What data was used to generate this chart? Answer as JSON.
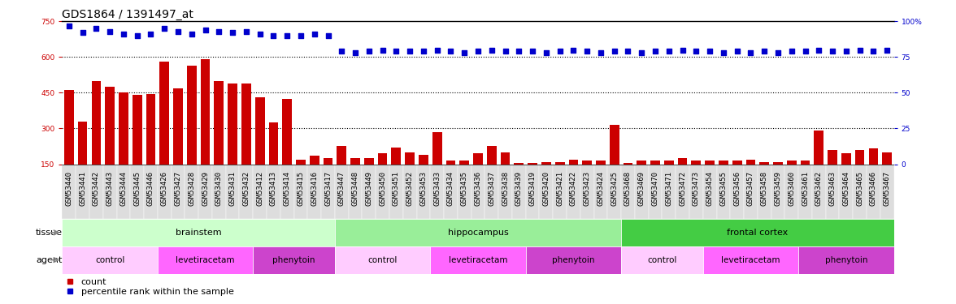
{
  "title": "GDS1864 / 1391497_at",
  "samples": [
    "GSM53440",
    "GSM53441",
    "GSM53442",
    "GSM53443",
    "GSM53444",
    "GSM53445",
    "GSM53446",
    "GSM53426",
    "GSM53427",
    "GSM53428",
    "GSM53429",
    "GSM53430",
    "GSM53431",
    "GSM53432",
    "GSM53412",
    "GSM53413",
    "GSM53414",
    "GSM53415",
    "GSM53416",
    "GSM53417",
    "GSM53447",
    "GSM53448",
    "GSM53449",
    "GSM53450",
    "GSM53451",
    "GSM53452",
    "GSM53453",
    "GSM53433",
    "GSM53434",
    "GSM53435",
    "GSM53436",
    "GSM53437",
    "GSM53438",
    "GSM53439",
    "GSM53419",
    "GSM53420",
    "GSM53421",
    "GSM53422",
    "GSM53423",
    "GSM53424",
    "GSM53425",
    "GSM53468",
    "GSM53469",
    "GSM53470",
    "GSM53471",
    "GSM53472",
    "GSM53473",
    "GSM53454",
    "GSM53455",
    "GSM53456",
    "GSM53457",
    "GSM53458",
    "GSM53459",
    "GSM53460",
    "GSM53461",
    "GSM53462",
    "GSM53463",
    "GSM53464",
    "GSM53465",
    "GSM53466",
    "GSM53467"
  ],
  "counts": [
    460,
    330,
    500,
    475,
    450,
    440,
    445,
    580,
    470,
    565,
    590,
    500,
    490,
    490,
    430,
    325,
    425,
    170,
    185,
    175,
    225,
    175,
    175,
    195,
    220,
    200,
    190,
    285,
    165,
    165,
    195,
    225,
    200,
    155,
    155,
    160,
    160,
    170,
    165,
    165,
    315,
    155,
    165,
    165,
    165,
    175,
    165,
    165,
    165,
    165,
    170,
    160,
    160,
    165,
    165,
    290,
    210,
    195,
    210,
    215,
    200
  ],
  "percentile": [
    97,
    92,
    95,
    93,
    91,
    90,
    91,
    95,
    93,
    91,
    94,
    93,
    92,
    93,
    91,
    90,
    90,
    90,
    91,
    90,
    79,
    78,
    79,
    80,
    79,
    79,
    79,
    80,
    79,
    78,
    79,
    80,
    79,
    79,
    79,
    78,
    79,
    80,
    79,
    78,
    79,
    79,
    78,
    79,
    79,
    80,
    79,
    79,
    78,
    79,
    78,
    79,
    78,
    79,
    79,
    80,
    79,
    79,
    80,
    79,
    80
  ],
  "ylim_left": [
    150,
    750
  ],
  "ylim_right": [
    0,
    100
  ],
  "yticks_left": [
    150,
    300,
    450,
    600,
    750
  ],
  "yticks_right": [
    0,
    25,
    50,
    75,
    100
  ],
  "bar_color": "#cc0000",
  "dot_color": "#0000cc",
  "tissue_groups": [
    {
      "label": "brainstem",
      "start": 0,
      "end": 19,
      "color": "#ccffcc"
    },
    {
      "label": "hippocampus",
      "start": 20,
      "end": 40,
      "color": "#99ee99"
    },
    {
      "label": "frontal cortex",
      "start": 41,
      "end": 60,
      "color": "#44cc44"
    }
  ],
  "agent_groups": [
    {
      "label": "control",
      "start": 0,
      "end": 6,
      "color": "#ffccff"
    },
    {
      "label": "levetiracetam",
      "start": 7,
      "end": 13,
      "color": "#ff66ff"
    },
    {
      "label": "phenytoin",
      "start": 14,
      "end": 19,
      "color": "#cc44cc"
    },
    {
      "label": "control",
      "start": 20,
      "end": 26,
      "color": "#ffccff"
    },
    {
      "label": "levetiracetam",
      "start": 27,
      "end": 33,
      "color": "#ff66ff"
    },
    {
      "label": "phenytoin",
      "start": 34,
      "end": 40,
      "color": "#cc44cc"
    },
    {
      "label": "control",
      "start": 41,
      "end": 46,
      "color": "#ffccff"
    },
    {
      "label": "levetiracetam",
      "start": 47,
      "end": 53,
      "color": "#ff66ff"
    },
    {
      "label": "phenytoin",
      "start": 54,
      "end": 60,
      "color": "#cc44cc"
    }
  ],
  "tissue_row_label": "tissue",
  "agent_row_label": "agent",
  "legend_count_label": "count",
  "legend_pct_label": "percentile rank within the sample",
  "background_color": "#ffffff",
  "title_fontsize": 10,
  "tick_fontsize": 6.5,
  "label_fontsize": 8,
  "row_label_fontsize": 8,
  "xtick_bg_color": "#dddddd"
}
